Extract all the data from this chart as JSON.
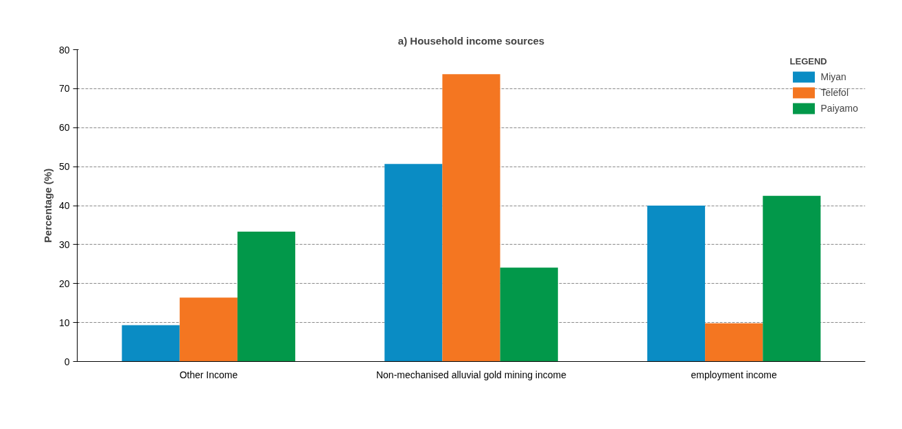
{
  "chart_data": {
    "type": "bar",
    "title": "a) Household income sources",
    "ylabel": "Percentage (%)",
    "legend_title": "LEGEND",
    "categories": [
      "Other Income",
      "Non-mechanised alluvial gold mining income",
      "employment income"
    ],
    "series": [
      {
        "name": "Miyan",
        "color": "#0a8cc4",
        "values": [
          9.3,
          50.7,
          40.0
        ]
      },
      {
        "name": "Telefol",
        "color": "#f47621",
        "values": [
          16.4,
          73.7,
          9.8
        ]
      },
      {
        "name": "Paiyamo",
        "color": "#02984a",
        "values": [
          33.3,
          24.1,
          42.5
        ]
      }
    ],
    "ylim": [
      0,
      80
    ],
    "yticks": [
      0,
      10,
      20,
      30,
      40,
      50,
      60,
      70,
      80
    ],
    "grid": "y",
    "legend": "top right"
  }
}
